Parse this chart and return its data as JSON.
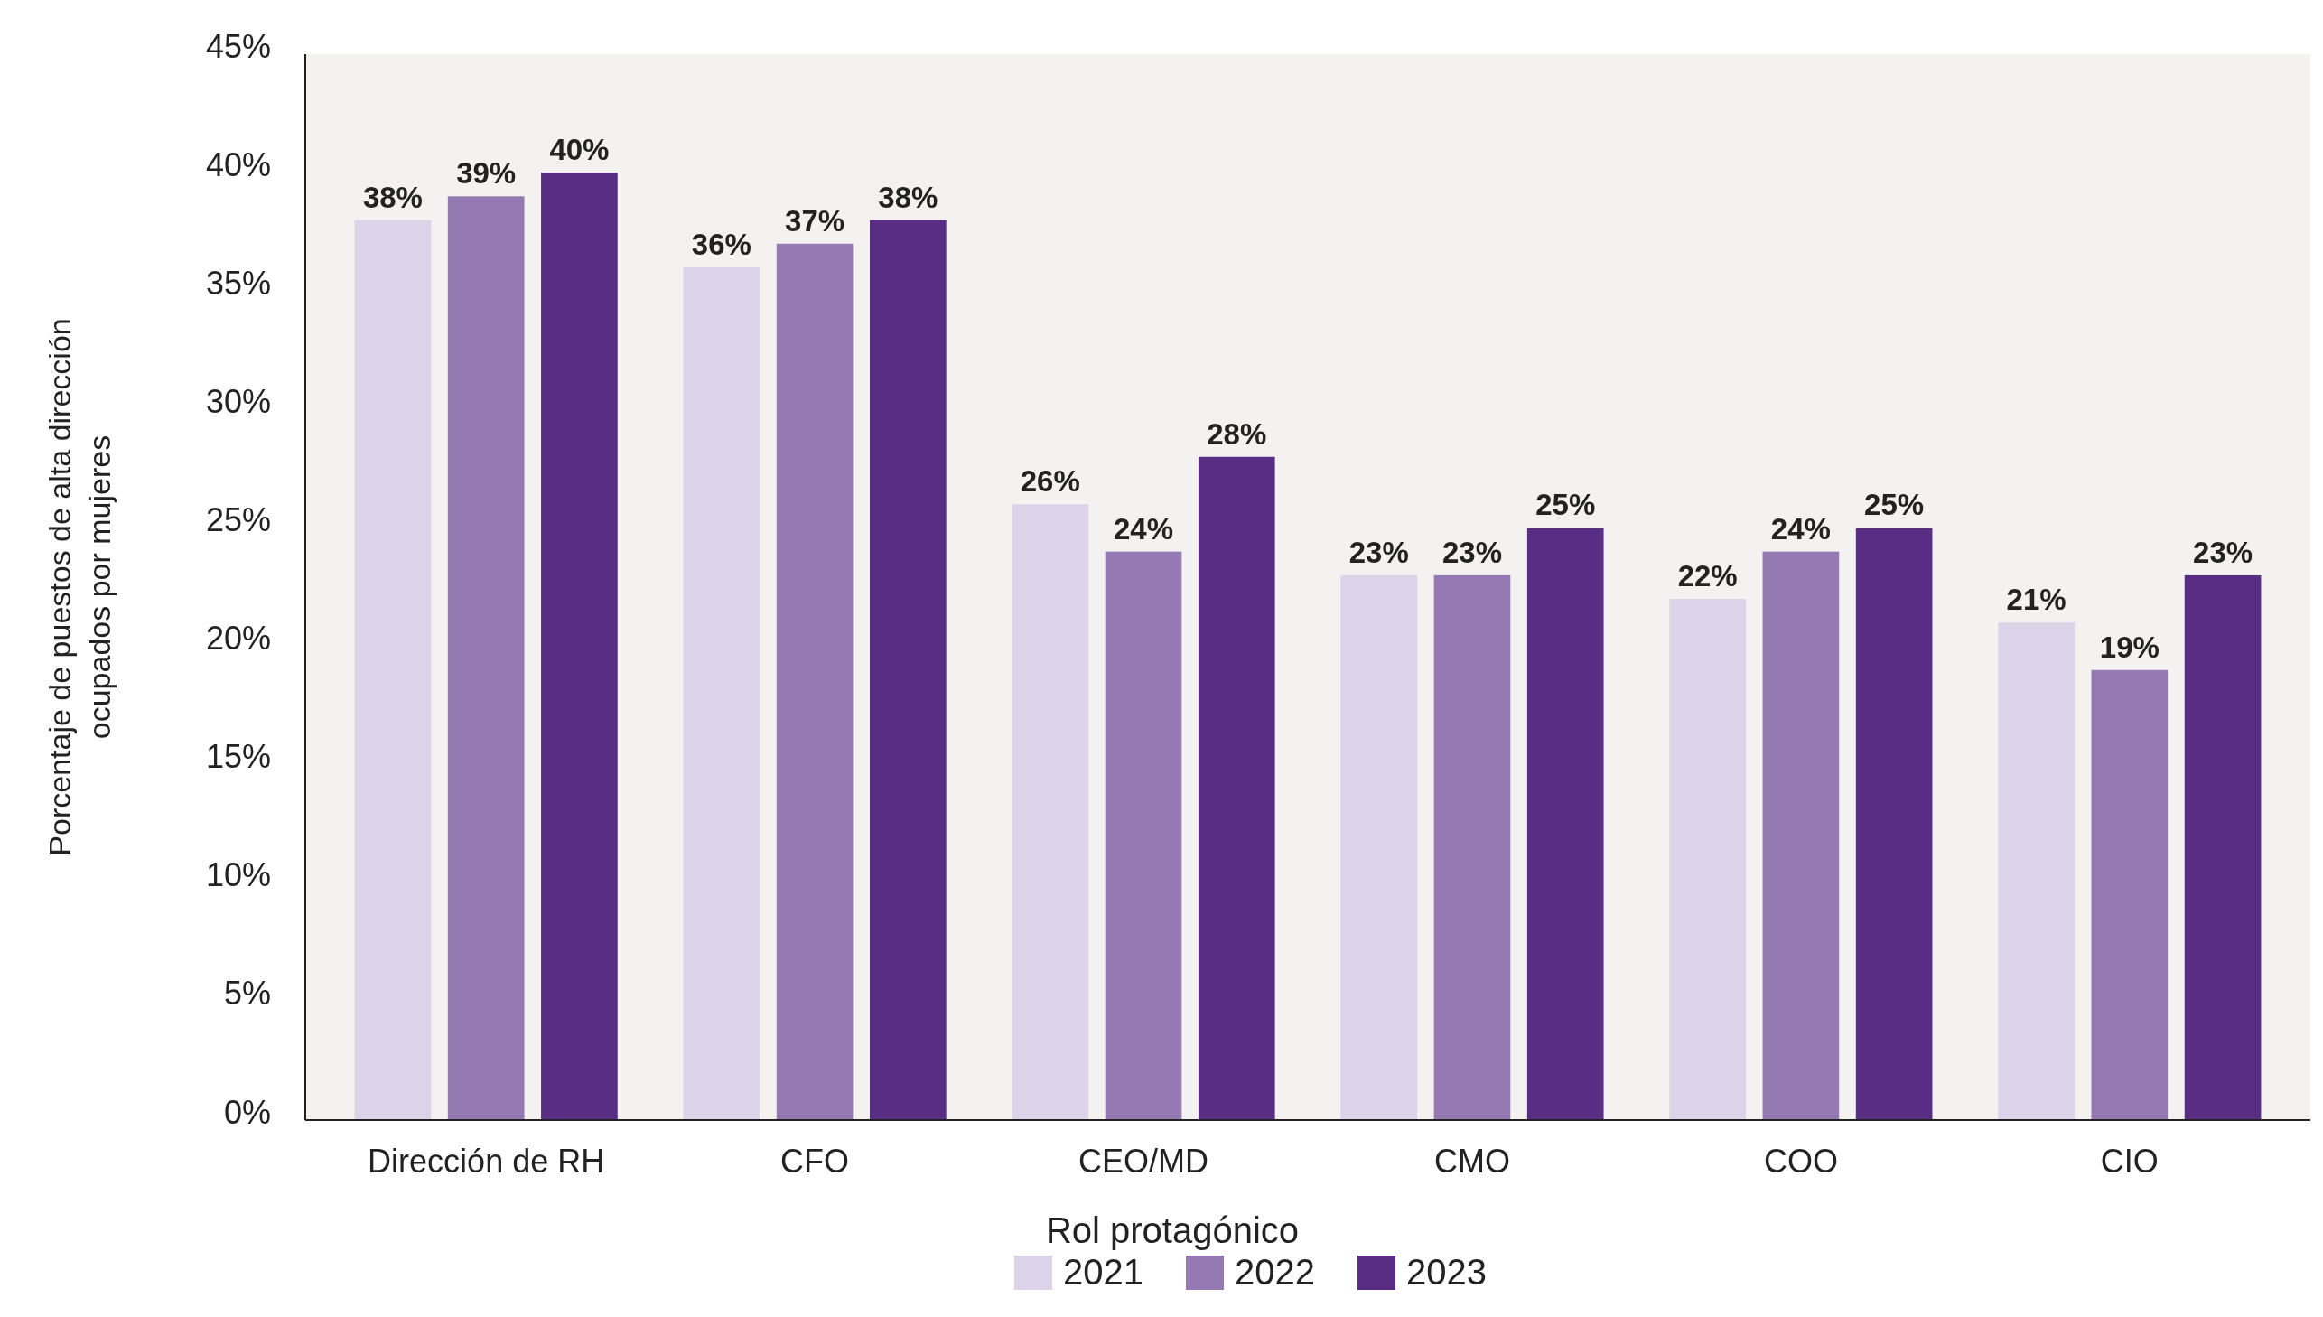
{
  "chart_data": {
    "type": "bar",
    "xlabel": "Rol protagónico",
    "ylabel": "Porcentaje de puestos de alta dirección ocupados por mujeres",
    "categories": [
      "Dirección de RH",
      "CFO",
      "CEO/MD",
      "CMO",
      "COO",
      "CIO"
    ],
    "series": [
      {
        "name": "2021",
        "color": "#dcd3e8",
        "values": [
          38,
          36,
          26,
          23,
          22,
          21
        ],
        "value_labels": [
          "38%",
          "36%",
          "26%",
          "23%",
          "22%",
          "21%"
        ]
      },
      {
        "name": "2022",
        "color": "#9579b3",
        "values": [
          39,
          37,
          24,
          23,
          24,
          19
        ],
        "value_labels": [
          "39%",
          "37%",
          "24%",
          "23%",
          "24%",
          "19%"
        ]
      },
      {
        "name": "2023",
        "color": "#5a2d84",
        "values": [
          40,
          38,
          28,
          25,
          25,
          23
        ],
        "value_labels": [
          "40%",
          "38%",
          "28%",
          "25%",
          "25%",
          "23%"
        ]
      }
    ],
    "ylim": [
      0,
      45
    ],
    "yticks": [
      {
        "value": 0,
        "label": "0%"
      },
      {
        "value": 5,
        "label": "5%"
      },
      {
        "value": 10,
        "label": "10%"
      },
      {
        "value": 15,
        "label": "15%"
      },
      {
        "value": 20,
        "label": "20%"
      },
      {
        "value": 25,
        "label": "25%"
      },
      {
        "value": 30,
        "label": "30%"
      },
      {
        "value": 35,
        "label": "35%"
      },
      {
        "value": 40,
        "label": "40%"
      },
      {
        "value": 45,
        "label": "45%"
      }
    ],
    "grid": false,
    "legend": "bottom"
  }
}
